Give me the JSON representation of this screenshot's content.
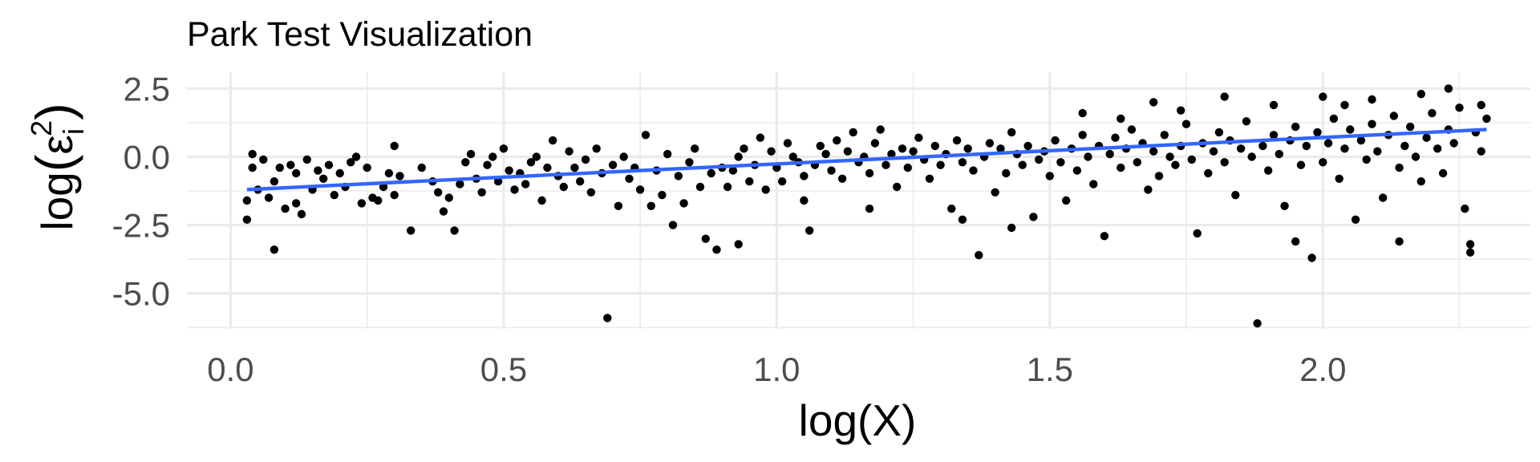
{
  "chart_data": {
    "type": "scatter",
    "title": "Park Test Visualization",
    "xlabel": "log(X)",
    "ylabel": "log(ε_i^2)",
    "ylabel_parts": {
      "main": "log",
      "open": "(",
      "symbol": "ε",
      "subscript": "i",
      "superscript": "2",
      "close": ")"
    },
    "xlim": [
      -0.08,
      2.38
    ],
    "ylim": [
      -6.3,
      3.1
    ],
    "xticks": [
      0.0,
      0.5,
      1.0,
      1.5,
      2.0
    ],
    "xtick_labels": [
      "0.0",
      "0.5",
      "1.0",
      "1.5",
      "2.0"
    ],
    "yticks": [
      2.5,
      0.0,
      -2.5,
      -5.0
    ],
    "ytick_labels": [
      "2.5",
      "0.0",
      "-2.5",
      "-5.0"
    ],
    "grid": true,
    "legend": "none",
    "point_color": "#000000",
    "trend_color": "#3366ff",
    "trend_line": {
      "x": [
        0.03,
        2.3
      ],
      "y": [
        -1.2,
        1.0
      ]
    },
    "series": [
      {
        "points": [
          [
            0.03,
            -1.6
          ],
          [
            0.03,
            -2.3
          ],
          [
            0.04,
            0.1
          ],
          [
            0.04,
            -0.4
          ],
          [
            0.05,
            -1.2
          ],
          [
            0.06,
            -0.1
          ],
          [
            0.07,
            -1.5
          ],
          [
            0.08,
            -0.9
          ],
          [
            0.08,
            -3.4
          ],
          [
            0.09,
            -0.4
          ],
          [
            0.1,
            -1.9
          ],
          [
            0.11,
            -0.3
          ],
          [
            0.12,
            -0.6
          ],
          [
            0.12,
            -1.7
          ],
          [
            0.13,
            -2.1
          ],
          [
            0.14,
            -0.1
          ],
          [
            0.15,
            -1.2
          ],
          [
            0.16,
            -0.5
          ],
          [
            0.17,
            -0.8
          ],
          [
            0.18,
            -0.3
          ],
          [
            0.19,
            -1.4
          ],
          [
            0.2,
            -0.6
          ],
          [
            0.21,
            -1.1
          ],
          [
            0.22,
            -0.2
          ],
          [
            0.23,
            0.0
          ],
          [
            0.24,
            -1.7
          ],
          [
            0.25,
            -0.4
          ],
          [
            0.26,
            -1.5
          ],
          [
            0.27,
            -1.6
          ],
          [
            0.28,
            -1.1
          ],
          [
            0.29,
            -0.6
          ],
          [
            0.3,
            -1.4
          ],
          [
            0.3,
            0.4
          ],
          [
            0.31,
            -0.7
          ],
          [
            0.33,
            -2.7
          ],
          [
            0.35,
            -0.4
          ],
          [
            0.37,
            -0.9
          ],
          [
            0.38,
            -1.3
          ],
          [
            0.39,
            -2.0
          ],
          [
            0.4,
            -1.5
          ],
          [
            0.41,
            -2.7
          ],
          [
            0.42,
            -1.0
          ],
          [
            0.43,
            -0.2
          ],
          [
            0.44,
            0.1
          ],
          [
            0.45,
            -0.8
          ],
          [
            0.46,
            -1.3
          ],
          [
            0.47,
            -0.3
          ],
          [
            0.48,
            0.0
          ],
          [
            0.49,
            -0.9
          ],
          [
            0.5,
            0.3
          ],
          [
            0.51,
            -0.5
          ],
          [
            0.52,
            -1.2
          ],
          [
            0.53,
            -0.6
          ],
          [
            0.54,
            -1.0
          ],
          [
            0.55,
            -0.2
          ],
          [
            0.56,
            0.0
          ],
          [
            0.57,
            -1.6
          ],
          [
            0.58,
            -0.4
          ],
          [
            0.59,
            0.6
          ],
          [
            0.6,
            -0.7
          ],
          [
            0.61,
            -1.1
          ],
          [
            0.62,
            0.2
          ],
          [
            0.63,
            -0.4
          ],
          [
            0.64,
            -0.9
          ],
          [
            0.65,
            -0.1
          ],
          [
            0.66,
            -1.3
          ],
          [
            0.67,
            0.3
          ],
          [
            0.68,
            -0.6
          ],
          [
            0.69,
            -5.9
          ],
          [
            0.7,
            -0.3
          ],
          [
            0.71,
            -1.8
          ],
          [
            0.72,
            0.0
          ],
          [
            0.73,
            -0.8
          ],
          [
            0.74,
            -0.4
          ],
          [
            0.75,
            -1.2
          ],
          [
            0.76,
            0.8
          ],
          [
            0.77,
            -1.8
          ],
          [
            0.78,
            -0.5
          ],
          [
            0.79,
            -1.4
          ],
          [
            0.8,
            0.1
          ],
          [
            0.81,
            -2.5
          ],
          [
            0.82,
            -0.7
          ],
          [
            0.83,
            -1.7
          ],
          [
            0.84,
            -0.2
          ],
          [
            0.85,
            0.3
          ],
          [
            0.86,
            -1.1
          ],
          [
            0.87,
            -3.0
          ],
          [
            0.88,
            -0.6
          ],
          [
            0.89,
            -3.4
          ],
          [
            0.9,
            -0.4
          ],
          [
            0.91,
            -1.1
          ],
          [
            0.92,
            -0.5
          ],
          [
            0.93,
            0.0
          ],
          [
            0.94,
            0.3
          ],
          [
            0.95,
            -0.9
          ],
          [
            0.96,
            -0.3
          ],
          [
            0.97,
            0.7
          ],
          [
            0.98,
            -1.2
          ],
          [
            0.99,
            0.2
          ],
          [
            1.0,
            -0.4
          ],
          [
            1.01,
            -0.9
          ],
          [
            1.02,
            0.5
          ],
          [
            1.03,
            0.0
          ],
          [
            1.04,
            -0.2
          ],
          [
            1.05,
            -0.7
          ],
          [
            1.06,
            -2.7
          ],
          [
            1.07,
            -0.3
          ],
          [
            1.08,
            0.4
          ],
          [
            1.09,
            0.1
          ],
          [
            1.1,
            -0.5
          ],
          [
            1.11,
            0.6
          ],
          [
            1.12,
            -0.8
          ],
          [
            1.13,
            0.2
          ],
          [
            1.14,
            0.9
          ],
          [
            1.15,
            -0.2
          ],
          [
            1.16,
            0.0
          ],
          [
            1.17,
            -0.6
          ],
          [
            1.18,
            0.5
          ],
          [
            1.19,
            1.0
          ],
          [
            1.2,
            -0.3
          ],
          [
            1.21,
            0.1
          ],
          [
            1.22,
            -1.1
          ],
          [
            1.23,
            0.3
          ],
          [
            1.24,
            -0.4
          ],
          [
            1.25,
            0.2
          ],
          [
            1.26,
            0.7
          ],
          [
            1.27,
            -0.1
          ],
          [
            1.28,
            -0.8
          ],
          [
            1.29,
            0.4
          ],
          [
            1.3,
            -0.3
          ],
          [
            1.31,
            0.1
          ],
          [
            1.32,
            -1.9
          ],
          [
            1.33,
            0.6
          ],
          [
            1.34,
            -0.2
          ],
          [
            1.35,
            0.3
          ],
          [
            1.36,
            -0.5
          ],
          [
            1.37,
            -3.6
          ],
          [
            1.38,
            0.0
          ],
          [
            1.39,
            0.5
          ],
          [
            1.4,
            -1.3
          ],
          [
            1.41,
            0.3
          ],
          [
            1.42,
            -0.6
          ],
          [
            1.43,
            0.9
          ],
          [
            1.44,
            0.1
          ],
          [
            1.45,
            -0.3
          ],
          [
            1.46,
            0.4
          ],
          [
            1.47,
            -2.2
          ],
          [
            1.48,
            -0.1
          ],
          [
            1.49,
            0.2
          ],
          [
            1.5,
            -0.7
          ],
          [
            1.51,
            0.6
          ],
          [
            1.52,
            -0.2
          ],
          [
            1.53,
            -1.6
          ],
          [
            1.54,
            0.3
          ],
          [
            1.55,
            -0.5
          ],
          [
            1.56,
            0.8
          ],
          [
            1.57,
            0.0
          ],
          [
            1.58,
            -1.0
          ],
          [
            1.59,
            0.4
          ],
          [
            1.6,
            -2.9
          ],
          [
            1.61,
            0.1
          ],
          [
            1.62,
            0.7
          ],
          [
            1.63,
            -0.4
          ],
          [
            1.64,
            0.3
          ],
          [
            1.65,
            1.0
          ],
          [
            1.66,
            -0.2
          ],
          [
            1.67,
            0.5
          ],
          [
            1.68,
            -1.2
          ],
          [
            1.69,
            0.2
          ],
          [
            1.7,
            -0.7
          ],
          [
            1.71,
            0.8
          ],
          [
            1.72,
            0.0
          ],
          [
            1.73,
            -0.3
          ],
          [
            1.74,
            0.4
          ],
          [
            1.75,
            1.2
          ],
          [
            1.76,
            -0.1
          ],
          [
            1.77,
            -2.8
          ],
          [
            1.78,
            0.5
          ],
          [
            1.79,
            -0.6
          ],
          [
            1.8,
            0.2
          ],
          [
            1.81,
            0.9
          ],
          [
            1.82,
            -0.2
          ],
          [
            1.83,
            0.6
          ],
          [
            1.84,
            -1.4
          ],
          [
            1.85,
            0.3
          ],
          [
            1.86,
            1.3
          ],
          [
            1.87,
            0.0
          ],
          [
            1.88,
            -6.1
          ],
          [
            1.89,
            0.4
          ],
          [
            1.9,
            -0.5
          ],
          [
            1.91,
            0.8
          ],
          [
            1.92,
            0.1
          ],
          [
            1.93,
            -1.8
          ],
          [
            1.94,
            0.6
          ],
          [
            1.95,
            1.1
          ],
          [
            1.96,
            -0.3
          ],
          [
            1.97,
            0.4
          ],
          [
            1.98,
            -3.7
          ],
          [
            1.99,
            0.9
          ],
          [
            2.0,
            -0.2
          ],
          [
            2.01,
            0.5
          ],
          [
            2.02,
            1.4
          ],
          [
            2.03,
            -0.8
          ],
          [
            2.04,
            0.3
          ],
          [
            2.05,
            1.0
          ],
          [
            2.06,
            -2.3
          ],
          [
            2.07,
            0.6
          ],
          [
            2.08,
            -0.1
          ],
          [
            2.09,
            1.2
          ],
          [
            2.1,
            0.2
          ],
          [
            2.11,
            -1.5
          ],
          [
            2.12,
            0.8
          ],
          [
            2.13,
            1.5
          ],
          [
            2.14,
            -0.4
          ],
          [
            2.15,
            0.4
          ],
          [
            2.16,
            1.1
          ],
          [
            2.17,
            0.0
          ],
          [
            2.18,
            -0.9
          ],
          [
            2.19,
            0.7
          ],
          [
            2.2,
            1.6
          ],
          [
            2.21,
            0.3
          ],
          [
            2.22,
            -0.6
          ],
          [
            2.23,
            1.0
          ],
          [
            2.24,
            0.5
          ],
          [
            2.25,
            1.8
          ],
          [
            2.26,
            -1.9
          ],
          [
            2.27,
            -3.5
          ],
          [
            2.28,
            0.9
          ],
          [
            2.29,
            0.2
          ],
          [
            2.3,
            1.4
          ],
          [
            1.56,
            1.6
          ],
          [
            1.63,
            1.4
          ],
          [
            1.69,
            2.0
          ],
          [
            1.74,
            1.7
          ],
          [
            1.82,
            2.2
          ],
          [
            1.91,
            1.9
          ],
          [
            1.95,
            -3.1
          ],
          [
            2.0,
            2.2
          ],
          [
            2.04,
            1.9
          ],
          [
            2.09,
            2.1
          ],
          [
            2.14,
            -3.1
          ],
          [
            2.18,
            2.3
          ],
          [
            2.23,
            2.5
          ],
          [
            2.27,
            -3.2
          ],
          [
            2.29,
            1.9
          ],
          [
            1.43,
            -2.6
          ],
          [
            1.34,
            -2.3
          ],
          [
            1.17,
            -1.9
          ],
          [
            1.05,
            -1.6
          ],
          [
            0.93,
            -3.2
          ]
        ]
      }
    ]
  }
}
